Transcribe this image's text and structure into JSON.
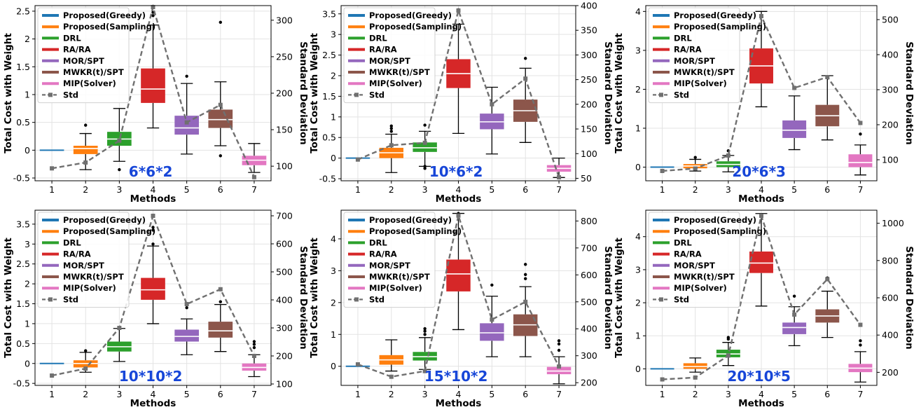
{
  "shared": {
    "xlabel": "Methods",
    "ylabel": "Total Cost with Weight",
    "y2label": "Standard Deviation",
    "categories": [
      "1",
      "2",
      "3",
      "4",
      "5",
      "6",
      "7"
    ],
    "legend": [
      "Proposed(Greedy)",
      "Proposed(Sampling)",
      "DRL",
      "RA/RA",
      "MOR/SPT",
      "MWKR(t)/SPT",
      "MIP(Solver)",
      "Std"
    ],
    "colors": [
      "#1f77b4",
      "#ff7f0e",
      "#2ca02c",
      "#d62728",
      "#9467bd",
      "#8c564b",
      "#e377c2"
    ],
    "std_color": "#707070",
    "title_color": "#1746d8"
  },
  "chart_data": [
    {
      "type": "box",
      "label": "6*6*2",
      "ylim": [
        -0.55,
        2.6
      ],
      "yticks": [
        -0.5,
        0,
        0.5,
        1,
        1.5,
        2,
        2.5
      ],
      "y2lim": [
        80,
        320
      ],
      "y2ticks": [
        100,
        150,
        200,
        250,
        300
      ],
      "boxes": [
        {
          "lw": 0,
          "q1": 0,
          "med": 0,
          "q3": 0,
          "uw": 0,
          "fl": []
        },
        {
          "lw": -0.35,
          "q1": -0.07,
          "med": 0.03,
          "q3": 0.08,
          "uw": 0.3,
          "fl": [
            0.45
          ]
        },
        {
          "lw": -0.2,
          "q1": 0.08,
          "med": 0.2,
          "q3": 0.33,
          "uw": 0.75,
          "fl": [
            -0.35
          ]
        },
        {
          "lw": 0.4,
          "q1": 0.85,
          "med": 1.1,
          "q3": 1.47,
          "uw": 2.25,
          "fl": [
            2.42,
            2.48
          ]
        },
        {
          "lw": -0.07,
          "q1": 0.28,
          "med": 0.4,
          "q3": 0.62,
          "uw": 1.2,
          "fl": [
            1.33
          ]
        },
        {
          "lw": 0.08,
          "q1": 0.4,
          "med": 0.55,
          "q3": 0.73,
          "uw": 1.23,
          "fl": [
            -0.1,
            2.3
          ]
        },
        {
          "lw": -0.4,
          "q1": -0.27,
          "med": -0.18,
          "q3": -0.1,
          "uw": 0.12,
          "fl": []
        }
      ],
      "std": [
        97,
        105,
        135,
        318,
        160,
        184,
        85
      ]
    },
    {
      "type": "box",
      "label": "10*6*2",
      "ylim": [
        -0.55,
        3.7
      ],
      "yticks": [
        -0.5,
        0,
        0.5,
        1,
        1.5,
        2,
        2.5,
        3,
        3.5
      ],
      "y2lim": [
        45,
        400
      ],
      "y2ticks": [
        50,
        100,
        150,
        200,
        250,
        300,
        350,
        400
      ],
      "boxes": [
        {
          "lw": 0,
          "q1": 0,
          "med": 0,
          "q3": 0,
          "uw": 0,
          "fl": []
        },
        {
          "lw": -0.35,
          "q1": 0.0,
          "med": 0.13,
          "q3": 0.25,
          "uw": 0.58,
          "fl": [
            0.65,
            0.72,
            0.78
          ]
        },
        {
          "lw": -0.2,
          "q1": 0.15,
          "med": 0.25,
          "q3": 0.38,
          "uw": 0.65,
          "fl": [
            -0.2,
            -0.25,
            0.8
          ]
        },
        {
          "lw": 0.6,
          "q1": 1.7,
          "med": 2.05,
          "q3": 2.4,
          "uw": 3.25,
          "fl": [
            3.6
          ]
        },
        {
          "lw": 0.1,
          "q1": 0.7,
          "med": 0.88,
          "q3": 1.08,
          "uw": 1.72,
          "fl": []
        },
        {
          "lw": 0.38,
          "q1": 0.88,
          "med": 1.15,
          "q3": 1.42,
          "uw": 2.18,
          "fl": [
            2.42
          ]
        },
        {
          "lw": -0.47,
          "q1": -0.33,
          "med": -0.25,
          "q3": -0.17,
          "uw": 0.0,
          "fl": []
        }
      ],
      "std": [
        88,
        117,
        122,
        390,
        200,
        252,
        52
      ]
    },
    {
      "type": "box",
      "label": "20*6*3",
      "ylim": [
        -0.35,
        4.15
      ],
      "yticks": [
        0,
        1,
        2,
        3,
        4
      ],
      "y2lim": [
        40,
        540
      ],
      "y2ticks": [
        100,
        200,
        300,
        400,
        500
      ],
      "boxes": [
        {
          "lw": 0,
          "q1": 0,
          "med": 0,
          "q3": 0,
          "uw": 0,
          "fl": []
        },
        {
          "lw": -0.1,
          "q1": -0.03,
          "med": 0.03,
          "q3": 0.08,
          "uw": 0.2,
          "fl": [
            0.25
          ]
        },
        {
          "lw": -0.12,
          "q1": 0.0,
          "med": 0.07,
          "q3": 0.15,
          "uw": 0.3,
          "fl": [
            0.42
          ]
        },
        {
          "lw": 1.55,
          "q1": 2.15,
          "med": 2.6,
          "q3": 3.05,
          "uw": 4.0,
          "fl": []
        },
        {
          "lw": 0.45,
          "q1": 0.75,
          "med": 0.95,
          "q3": 1.2,
          "uw": 1.83,
          "fl": []
        },
        {
          "lw": 0.7,
          "q1": 1.05,
          "med": 1.32,
          "q3": 1.6,
          "uw": 2.35,
          "fl": []
        },
        {
          "lw": -0.2,
          "q1": 0.0,
          "med": 0.12,
          "q3": 0.33,
          "uw": 0.57,
          "fl": [
            0.85
          ]
        }
      ],
      "std": [
        68,
        75,
        112,
        510,
        305,
        336,
        205
      ]
    },
    {
      "type": "box",
      "label": "10*10*2",
      "ylim": [
        -0.55,
        3.85
      ],
      "yticks": [
        -0.5,
        0,
        0.5,
        1,
        1.5,
        2,
        2.5,
        3,
        3.5
      ],
      "y2lim": [
        95,
        720
      ],
      "y2ticks": [
        100,
        200,
        300,
        400,
        500,
        600,
        700
      ],
      "boxes": [
        {
          "lw": 0,
          "q1": 0,
          "med": 0,
          "q3": 0,
          "uw": 0,
          "fl": []
        },
        {
          "lw": -0.22,
          "q1": -0.1,
          "med": 0.0,
          "q3": 0.08,
          "uw": 0.28,
          "fl": [
            0.32
          ]
        },
        {
          "lw": 0.05,
          "q1": 0.3,
          "med": 0.42,
          "q3": 0.55,
          "uw": 0.88,
          "fl": []
        },
        {
          "lw": 1.0,
          "q1": 1.6,
          "med": 1.85,
          "q3": 2.15,
          "uw": 2.95,
          "fl": [
            3.0,
            3.35,
            3.42
          ]
        },
        {
          "lw": 0.22,
          "q1": 0.55,
          "med": 0.68,
          "q3": 0.85,
          "uw": 1.12,
          "fl": [
            1.4,
            1.47
          ]
        },
        {
          "lw": 0.3,
          "q1": 0.65,
          "med": 0.82,
          "q3": 1.05,
          "uw": 1.48,
          "fl": [
            1.55
          ]
        },
        {
          "lw": -0.33,
          "q1": -0.18,
          "med": -0.1,
          "q3": 0.0,
          "uw": 0.22,
          "fl": [
            0.4,
            0.48,
            0.55
          ]
        }
      ],
      "std": [
        130,
        155,
        300,
        700,
        385,
        438,
        200
      ]
    },
    {
      "type": "box",
      "label": "15*10*2",
      "ylim": [
        -0.6,
        4.9
      ],
      "yticks": [
        0,
        1,
        2,
        3,
        4
      ],
      "y2lim": [
        190,
        840
      ],
      "y2ticks": [
        200,
        300,
        400,
        500,
        600,
        700,
        800
      ],
      "boxes": [
        {
          "lw": 0,
          "q1": 0,
          "med": 0,
          "q3": 0,
          "uw": 0,
          "fl": []
        },
        {
          "lw": -0.15,
          "q1": 0.05,
          "med": 0.2,
          "q3": 0.35,
          "uw": 0.83,
          "fl": []
        },
        {
          "lw": -0.1,
          "q1": 0.18,
          "med": 0.3,
          "q3": 0.45,
          "uw": 0.9,
          "fl": [
            1.0,
            1.1,
            1.18
          ]
        },
        {
          "lw": 1.15,
          "q1": 2.35,
          "med": 2.9,
          "q3": 3.35,
          "uw": 4.8,
          "fl": [
            4.8
          ]
        },
        {
          "lw": 0.3,
          "q1": 0.8,
          "med": 1.05,
          "q3": 1.35,
          "uw": 2.2,
          "fl": [
            2.55
          ]
        },
        {
          "lw": 0.3,
          "q1": 0.95,
          "med": 1.3,
          "q3": 1.63,
          "uw": 2.5,
          "fl": [
            2.75,
            2.88,
            3.2
          ]
        },
        {
          "lw": -0.55,
          "q1": -0.25,
          "med": -0.15,
          "q3": -0.02,
          "uw": 0.3,
          "fl": [
            0.5,
            0.7,
            0.8
          ]
        }
      ],
      "std": [
        268,
        222,
        243,
        820,
        434,
        500,
        260
      ]
    },
    {
      "type": "box",
      "label": "20*10*5",
      "ylim": [
        -0.5,
        4.8
      ],
      "yticks": [
        0,
        1,
        2,
        3,
        4
      ],
      "y2lim": [
        130,
        1070
      ],
      "y2ticks": [
        200,
        400,
        600,
        800,
        1000
      ],
      "boxes": [
        {
          "lw": 0,
          "q1": 0,
          "med": 0,
          "q3": 0,
          "uw": 0,
          "fl": []
        },
        {
          "lw": -0.1,
          "q1": 0.0,
          "med": 0.07,
          "q3": 0.17,
          "uw": 0.33,
          "fl": []
        },
        {
          "lw": 0.1,
          "q1": 0.35,
          "med": 0.45,
          "q3": 0.58,
          "uw": 0.8,
          "fl": [
            0.9,
            0.95
          ]
        },
        {
          "lw": 1.9,
          "q1": 2.9,
          "med": 3.2,
          "q3": 3.55,
          "uw": 4.7,
          "fl": []
        },
        {
          "lw": 0.7,
          "q1": 1.05,
          "med": 1.25,
          "q3": 1.4,
          "uw": 1.88,
          "fl": [
            2.2
          ]
        },
        {
          "lw": 0.95,
          "q1": 1.4,
          "med": 1.6,
          "q3": 1.8,
          "uw": 2.35,
          "fl": [
            2.75
          ]
        },
        {
          "lw": -0.4,
          "q1": -0.1,
          "med": 0.02,
          "q3": 0.15,
          "uw": 0.52,
          "fl": [
            0.72,
            0.85
          ]
        }
      ],
      "std": [
        162,
        172,
        290,
        1040,
        510,
        700,
        455
      ]
    }
  ]
}
